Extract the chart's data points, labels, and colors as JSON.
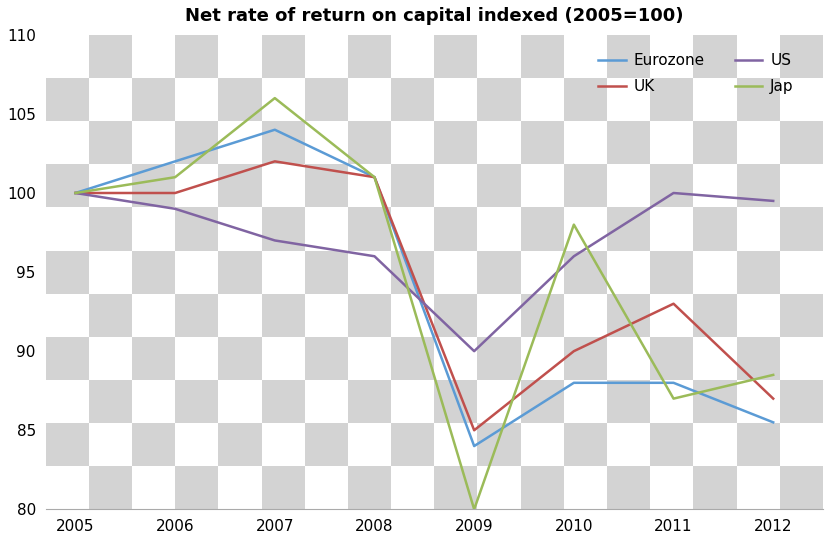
{
  "title": "Net rate of return on capital indexed (2005=100)",
  "years": [
    2005,
    2006,
    2007,
    2008,
    2009,
    2010,
    2011,
    2012
  ],
  "eurozone": [
    100,
    102,
    104,
    101,
    84,
    88,
    88,
    85.5
  ],
  "uk": [
    100,
    100,
    102,
    101,
    85,
    90,
    93,
    87
  ],
  "us": [
    100,
    99,
    97,
    96,
    90,
    96,
    100,
    99.5
  ],
  "jap": [
    100,
    101,
    106,
    101,
    80,
    98,
    87,
    88.5
  ],
  "colors": {
    "eurozone": "#5B9BD5",
    "uk": "#C0504D",
    "us": "#8064A2",
    "jap": "#9BBB59"
  },
  "ylim": [
    80,
    110
  ],
  "yticks": [
    80,
    85,
    90,
    95,
    100,
    105,
    110
  ],
  "xlim": [
    2004.7,
    2012.5
  ],
  "checker_light": "#FFFFFF",
  "checker_dark": "#D3D3D3",
  "checker_cols": 20,
  "checker_rows": 15
}
